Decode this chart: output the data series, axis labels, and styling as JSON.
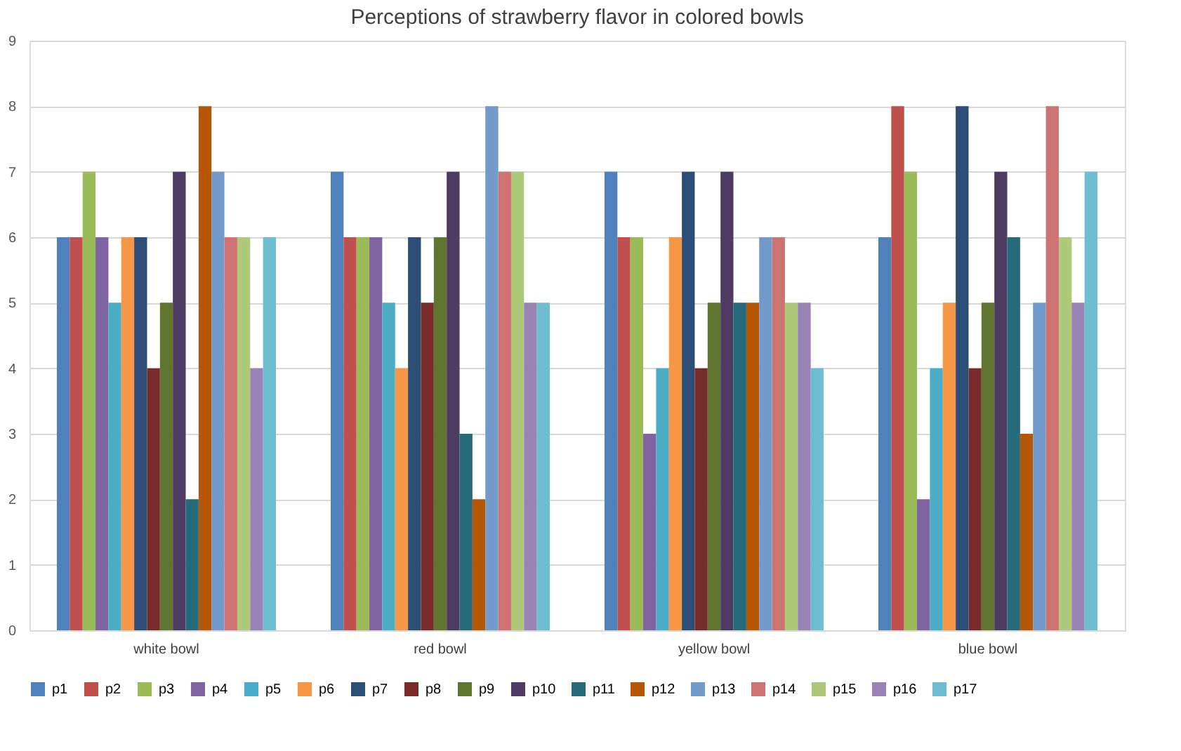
{
  "chart_data": {
    "type": "bar",
    "title": "Perceptions of strawberry flavor in colored bowls",
    "categories": [
      "white bowl",
      "red bowl",
      "yellow bowl",
      "blue bowl"
    ],
    "series": [
      {
        "name": "p1",
        "color": "#4f81bd",
        "values": [
          6,
          7,
          7,
          6
        ]
      },
      {
        "name": "p2",
        "color": "#c0504d",
        "values": [
          6,
          6,
          6,
          8
        ]
      },
      {
        "name": "p3",
        "color": "#9bbb59",
        "values": [
          7,
          6,
          6,
          7
        ]
      },
      {
        "name": "p4",
        "color": "#8064a2",
        "values": [
          6,
          6,
          3,
          2
        ]
      },
      {
        "name": "p5",
        "color": "#4bacc6",
        "values": [
          5,
          5,
          4,
          4
        ]
      },
      {
        "name": "p6",
        "color": "#f79646",
        "values": [
          6,
          4,
          6,
          5
        ]
      },
      {
        "name": "p7",
        "color": "#2c4d75",
        "values": [
          6,
          6,
          7,
          8
        ]
      },
      {
        "name": "p8",
        "color": "#772c2a",
        "values": [
          4,
          5,
          4,
          4
        ]
      },
      {
        "name": "p9",
        "color": "#5f7530",
        "values": [
          5,
          6,
          5,
          5
        ]
      },
      {
        "name": "p10",
        "color": "#4d3b62",
        "values": [
          7,
          7,
          7,
          7
        ]
      },
      {
        "name": "p11",
        "color": "#276a7c",
        "values": [
          2,
          3,
          5,
          6
        ]
      },
      {
        "name": "p12",
        "color": "#b65708",
        "values": [
          8,
          2,
          5,
          3
        ]
      },
      {
        "name": "p13",
        "color": "#729aca",
        "values": [
          7,
          8,
          6,
          5
        ]
      },
      {
        "name": "p14",
        "color": "#cd7371",
        "values": [
          6,
          7,
          6,
          8
        ]
      },
      {
        "name": "p15",
        "color": "#afc97a",
        "values": [
          6,
          7,
          5,
          6
        ]
      },
      {
        "name": "p16",
        "color": "#9983b5",
        "values": [
          4,
          5,
          5,
          5
        ]
      },
      {
        "name": "p17",
        "color": "#6fbdd1",
        "values": [
          6,
          5,
          4,
          7
        ]
      }
    ],
    "ylim": [
      0,
      9
    ],
    "yticks": [
      0,
      1,
      2,
      3,
      4,
      5,
      6,
      7,
      8,
      9
    ],
    "grid": "y",
    "legend": "bottom"
  }
}
